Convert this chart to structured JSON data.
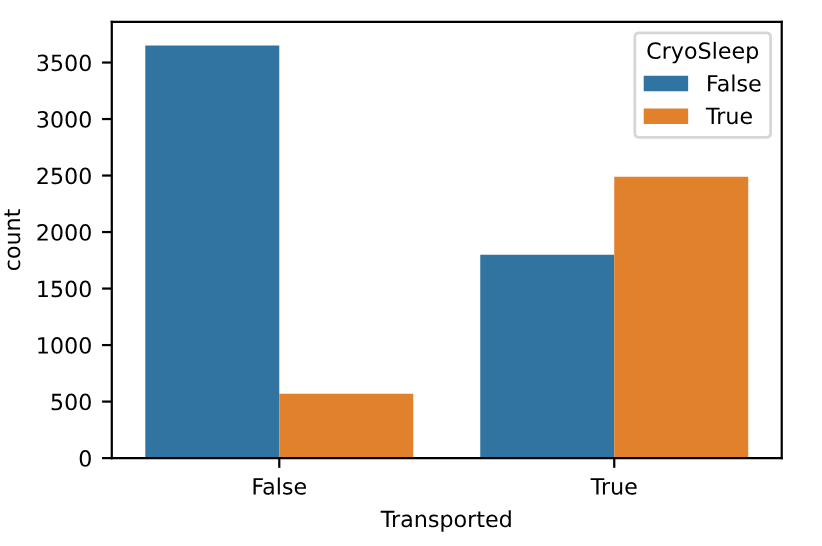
{
  "chart_data": {
    "type": "bar",
    "xlabel": "Transported",
    "ylabel": "count",
    "legend_title": "CryoSleep",
    "categories": [
      "False",
      "True"
    ],
    "series": [
      {
        "name": "False",
        "color": "#3274a1",
        "values": [
          3650,
          1800
        ]
      },
      {
        "name": "True",
        "color": "#e1812c",
        "values": [
          570,
          2490
        ]
      }
    ],
    "ylim": [
      0,
      3860
    ],
    "yticks": [
      0,
      500,
      1000,
      1500,
      2000,
      2500,
      3000,
      3500
    ],
    "legend": "top right",
    "grid": false
  }
}
